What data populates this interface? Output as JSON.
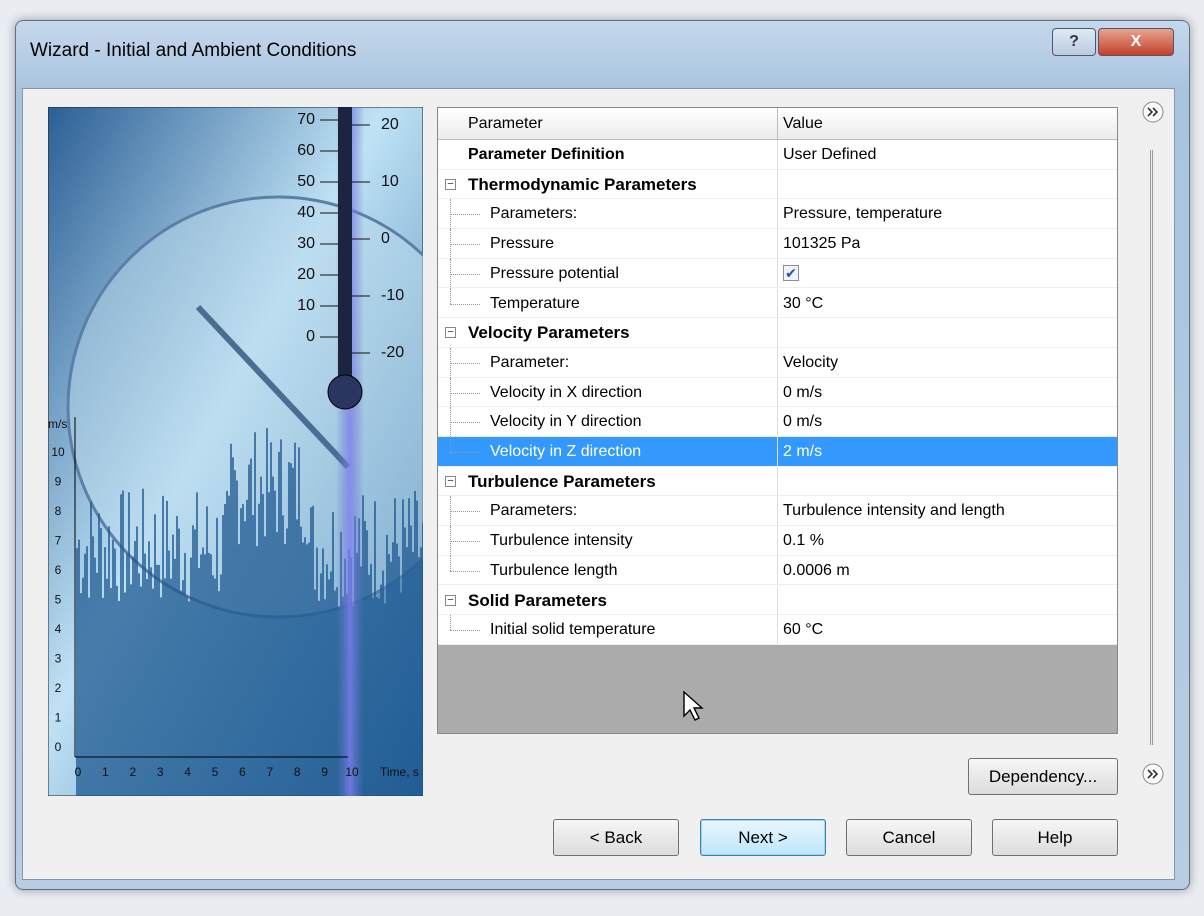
{
  "window": {
    "title": "Wizard - Initial and Ambient Conditions",
    "help_button": "?",
    "close_button": "X"
  },
  "illustration": {
    "thermometer_left_scale": [
      70,
      60,
      50,
      40,
      30,
      20,
      10,
      0
    ],
    "thermometer_right_scale": [
      20,
      10,
      0,
      -10,
      -20
    ],
    "y_axis_unit": "m/s",
    "y_axis_ticks": [
      10,
      9,
      8,
      7,
      6,
      5,
      4,
      3,
      2,
      1,
      0
    ],
    "x_axis_ticks": [
      0,
      1,
      2,
      3,
      4,
      5,
      6,
      7,
      8,
      9,
      10
    ],
    "x_axis_label": "Time, s"
  },
  "table": {
    "columns": [
      "Parameter",
      "Value"
    ],
    "definition": {
      "name": "Parameter Definition",
      "value": "User Defined"
    },
    "groups": [
      {
        "name": "Thermodynamic Parameters",
        "expanded": true,
        "items": [
          {
            "name": "Parameters:",
            "value": "Pressure, temperature"
          },
          {
            "name": "Pressure",
            "value": "101325 Pa"
          },
          {
            "name": "Pressure potential",
            "checked": true
          },
          {
            "name": "Temperature",
            "value": "30 °C"
          }
        ]
      },
      {
        "name": "Velocity Parameters",
        "expanded": true,
        "items": [
          {
            "name": "Parameter:",
            "value": "Velocity"
          },
          {
            "name": "Velocity in X direction",
            "value": "0 m/s"
          },
          {
            "name": "Velocity in Y direction",
            "value": "0 m/s"
          },
          {
            "name": "Velocity in Z direction",
            "value": "2 m/s",
            "selected": true
          }
        ]
      },
      {
        "name": "Turbulence Parameters",
        "expanded": true,
        "items": [
          {
            "name": "Parameters:",
            "value": "Turbulence intensity and length"
          },
          {
            "name": "Turbulence intensity",
            "value": "0.1 %"
          },
          {
            "name": "Turbulence length",
            "value": "0.0006 m"
          }
        ]
      },
      {
        "name": "Solid Parameters",
        "expanded": true,
        "items": [
          {
            "name": "Initial solid temperature",
            "value": "60 °C"
          }
        ]
      }
    ]
  },
  "dependency_button": "Dependency...",
  "buttons": [
    "< Back",
    "Next >",
    "Cancel",
    "Help"
  ]
}
